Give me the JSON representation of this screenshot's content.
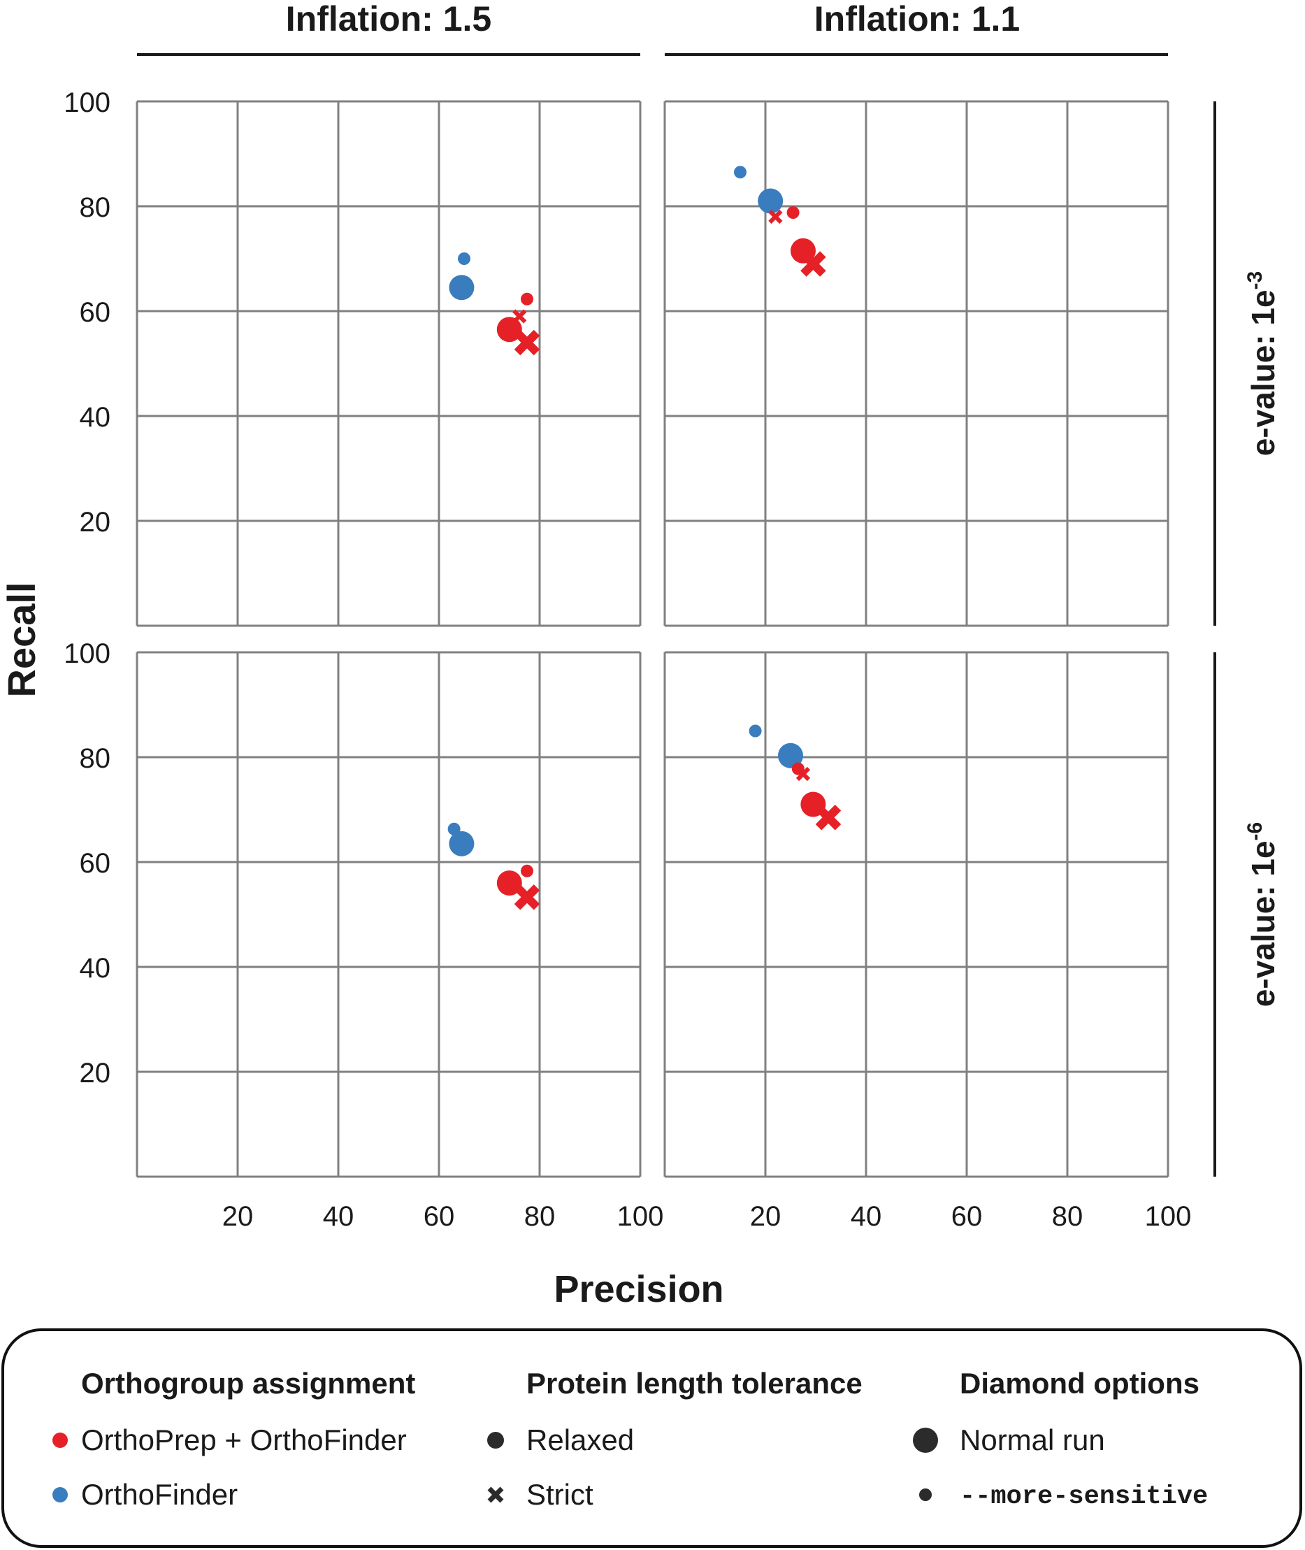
{
  "colors": {
    "orthoprep_orthofinder": "#e52127",
    "orthofinder": "#3a7dbf",
    "grid": "#808080",
    "text": "#1a1a1a",
    "legend_black": "#2b2b2b"
  },
  "column_headers": [
    "Inflation: 1.5",
    "Inflation: 1.1"
  ],
  "row_headers": [
    {
      "prefix": "e-value: 1e",
      "exponent": "-3"
    },
    {
      "prefix": "e-value: 1e",
      "exponent": "-6"
    }
  ],
  "axes": {
    "xlabel": "Precision",
    "ylabel": "Recall",
    "x_ticks": [
      "20",
      "40",
      "60",
      "80",
      "100"
    ],
    "y_ticks": [
      "20",
      "40",
      "60",
      "80",
      "100"
    ]
  },
  "legend": {
    "groups": [
      {
        "title": "Orthogroup assignment",
        "items": [
          {
            "label": "OrthoPrep + OrthoFinder",
            "icon": "red-dot-icon"
          },
          {
            "label": "OrthoFinder",
            "icon": "blue-dot-icon"
          }
        ]
      },
      {
        "title": "Protein length tolerance",
        "items": [
          {
            "label": "Relaxed",
            "icon": "circle-icon"
          },
          {
            "label": "Strict",
            "icon": "cross-icon"
          }
        ]
      },
      {
        "title": "Diamond options",
        "items": [
          {
            "label": "Normal run",
            "icon": "large-dot-icon"
          },
          {
            "label": "--more-sensitive",
            "icon": "small-dot-icon"
          }
        ]
      }
    ]
  },
  "chart_data": {
    "type": "scatter",
    "xlabel": "Precision",
    "ylabel": "Recall",
    "xlim": [
      0,
      100
    ],
    "ylim": [
      0,
      100
    ],
    "grid": true,
    "legend_position": "bottom",
    "panels": [
      {
        "column": "Inflation: 1.5",
        "row": "e-value: 1e-3",
        "points": [
          {
            "group": "OrthoFinder",
            "tolerance": "Relaxed",
            "diamond": "--more-sensitive",
            "x": 65,
            "y": 70
          },
          {
            "group": "OrthoFinder",
            "tolerance": "Relaxed",
            "diamond": "Normal run",
            "x": 64.5,
            "y": 64.5
          },
          {
            "group": "OrthoPrep + OrthoFinder",
            "tolerance": "Relaxed",
            "diamond": "--more-sensitive",
            "x": 77.5,
            "y": 62.3
          },
          {
            "group": "OrthoPrep + OrthoFinder",
            "tolerance": "Strict",
            "diamond": "--more-sensitive",
            "x": 76,
            "y": 59
          },
          {
            "group": "OrthoPrep + OrthoFinder",
            "tolerance": "Relaxed",
            "diamond": "Normal run",
            "x": 74,
            "y": 56.5
          },
          {
            "group": "OrthoPrep + OrthoFinder",
            "tolerance": "Strict",
            "diamond": "Normal run",
            "x": 77.5,
            "y": 54
          }
        ]
      },
      {
        "column": "Inflation: 1.1",
        "row": "e-value: 1e-3",
        "points": [
          {
            "group": "OrthoFinder",
            "tolerance": "Relaxed",
            "diamond": "--more-sensitive",
            "x": 15,
            "y": 86.5
          },
          {
            "group": "OrthoFinder",
            "tolerance": "Relaxed",
            "diamond": "Normal run",
            "x": 21,
            "y": 81
          },
          {
            "group": "OrthoPrep + OrthoFinder",
            "tolerance": "Strict",
            "diamond": "--more-sensitive",
            "x": 22,
            "y": 78
          },
          {
            "group": "OrthoPrep + OrthoFinder",
            "tolerance": "Relaxed",
            "diamond": "--more-sensitive",
            "x": 25.5,
            "y": 78.8
          },
          {
            "group": "OrthoPrep + OrthoFinder",
            "tolerance": "Relaxed",
            "diamond": "Normal run",
            "x": 27.5,
            "y": 71.5
          },
          {
            "group": "OrthoPrep + OrthoFinder",
            "tolerance": "Strict",
            "diamond": "Normal run",
            "x": 29.5,
            "y": 69
          }
        ]
      },
      {
        "column": "Inflation: 1.5",
        "row": "e-value: 1e-6",
        "points": [
          {
            "group": "OrthoFinder",
            "tolerance": "Relaxed",
            "diamond": "--more-sensitive",
            "x": 63,
            "y": 66.3
          },
          {
            "group": "OrthoFinder",
            "tolerance": "Relaxed",
            "diamond": "Normal run",
            "x": 64.5,
            "y": 63.5
          },
          {
            "group": "OrthoPrep + OrthoFinder",
            "tolerance": "Relaxed",
            "diamond": "--more-sensitive",
            "x": 77.5,
            "y": 58.3
          },
          {
            "group": "OrthoPrep + OrthoFinder",
            "tolerance": "Relaxed",
            "diamond": "Normal run",
            "x": 74,
            "y": 56
          },
          {
            "group": "OrthoPrep + OrthoFinder",
            "tolerance": "Strict",
            "diamond": "Normal run",
            "x": 77.5,
            "y": 53.3
          }
        ]
      },
      {
        "column": "Inflation: 1.1",
        "row": "e-value: 1e-6",
        "points": [
          {
            "group": "OrthoFinder",
            "tolerance": "Relaxed",
            "diamond": "--more-sensitive",
            "x": 18,
            "y": 85
          },
          {
            "group": "OrthoFinder",
            "tolerance": "Relaxed",
            "diamond": "Normal run",
            "x": 25,
            "y": 80.3
          },
          {
            "group": "OrthoPrep + OrthoFinder",
            "tolerance": "Relaxed",
            "diamond": "--more-sensitive",
            "x": 26.5,
            "y": 77.8
          },
          {
            "group": "OrthoPrep + OrthoFinder",
            "tolerance": "Strict",
            "diamond": "--more-sensitive",
            "x": 27.5,
            "y": 76.8
          },
          {
            "group": "OrthoPrep + OrthoFinder",
            "tolerance": "Relaxed",
            "diamond": "Normal run",
            "x": 29.5,
            "y": 71
          },
          {
            "group": "OrthoPrep + OrthoFinder",
            "tolerance": "Strict",
            "diamond": "Normal run",
            "x": 32.5,
            "y": 68.5
          }
        ]
      }
    ]
  }
}
